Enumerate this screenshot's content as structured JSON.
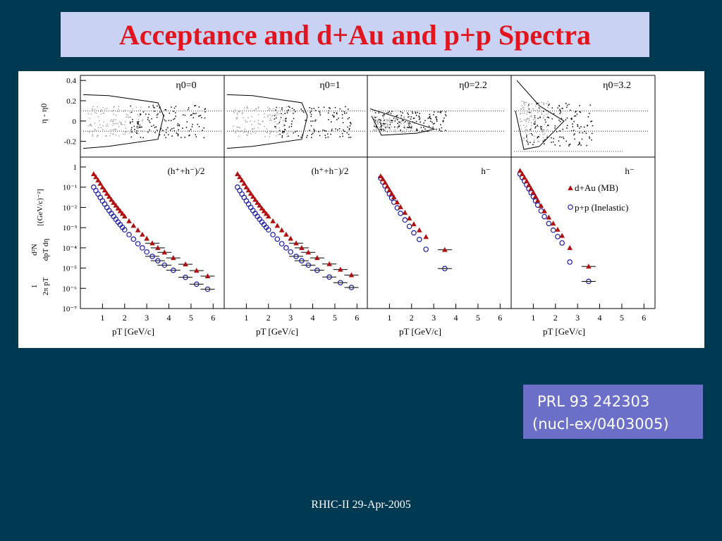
{
  "slide": {
    "title": "Acceptance and d+Au and p+p Spectra",
    "footer": "RHIC-II 29-Apr-2005",
    "reference_line1": "PRL 93 242303",
    "reference_line2": "(nucl-ex/0403005)",
    "colors": {
      "background": "#003a52",
      "title_box": "#c9d2f2",
      "title_text": "#e2141e",
      "reference_box": "#6b6fc8",
      "dAu_marker": "#b01010",
      "pp_marker": "#1a1aa8"
    }
  },
  "chart_data": {
    "type": "scatter",
    "acceptance_ylabel": "η - η0",
    "acceptance_yticks": [
      0.4,
      0.2,
      0,
      -0.2
    ],
    "acceptance_ylim": [
      -0.3,
      0.45
    ],
    "spectra_ylabel_parts": {
      "prefix_num": "1",
      "prefix_den": "2π pT",
      "frac_num": "d²N",
      "frac_den": "dpT dη",
      "units": "[(GeV/c)⁻²]"
    },
    "spectra_ylog_range": [
      1e-07,
      1
    ],
    "spectra_yticks": [
      "1",
      "10⁻¹",
      "10⁻²",
      "10⁻³",
      "10⁻⁴",
      "10⁻⁵",
      "10⁻⁶",
      "10⁻⁷"
    ],
    "xlabel": "pT [GeV/c]",
    "xticks": [
      "1",
      "2",
      "3",
      "4",
      "5",
      "6"
    ],
    "xlim": [
      0,
      6.5
    ],
    "legend": {
      "placement": "right-of-panel-4",
      "dAu": "d+Au (MB)",
      "pp": "p+p (Inelastic)"
    },
    "panels": [
      {
        "eta_label": "η0=0",
        "species_label": "(h⁺+h⁻)/2",
        "dAu": [
          [
            0.6,
            0.45
          ],
          [
            0.7,
            0.32
          ],
          [
            0.8,
            0.22
          ],
          [
            0.9,
            0.15
          ],
          [
            1.0,
            0.1
          ],
          [
            1.1,
            0.07
          ],
          [
            1.2,
            0.048
          ],
          [
            1.3,
            0.034
          ],
          [
            1.4,
            0.024
          ],
          [
            1.5,
            0.017
          ],
          [
            1.6,
            0.0125
          ],
          [
            1.7,
            0.009
          ],
          [
            1.8,
            0.0066
          ],
          [
            1.9,
            0.0049
          ],
          [
            2.0,
            0.0036
          ],
          [
            2.2,
            0.0021
          ],
          [
            2.4,
            0.00125
          ],
          [
            2.6,
            0.00075
          ],
          [
            2.8,
            0.00046
          ],
          [
            3.0,
            0.00029
          ],
          [
            3.25,
            0.00017
          ],
          [
            3.5,
            0.0001
          ],
          [
            3.8,
            6e-05
          ],
          [
            4.2,
            3.2e-05
          ],
          [
            4.75,
            1.55e-05
          ],
          [
            5.25,
            7.5e-06
          ],
          [
            5.75,
            4e-06
          ]
        ],
        "pp": [
          [
            0.6,
            0.1
          ],
          [
            0.7,
            0.068
          ],
          [
            0.8,
            0.046
          ],
          [
            0.9,
            0.031
          ],
          [
            1.0,
            0.021
          ],
          [
            1.1,
            0.0145
          ],
          [
            1.2,
            0.01
          ],
          [
            1.3,
            0.007
          ],
          [
            1.4,
            0.005
          ],
          [
            1.5,
            0.0036
          ],
          [
            1.6,
            0.0026
          ],
          [
            1.7,
            0.0019
          ],
          [
            1.8,
            0.0014
          ],
          [
            1.9,
            0.00104
          ],
          [
            2.0,
            0.00078
          ],
          [
            2.2,
            0.00045
          ],
          [
            2.4,
            0.00027
          ],
          [
            2.6,
            0.00016
          ],
          [
            2.8,
            0.0001
          ],
          [
            3.0,
            6.3e-05
          ],
          [
            3.25,
            3.8e-05
          ],
          [
            3.5,
            2.3e-05
          ],
          [
            3.8,
            1.4e-05
          ],
          [
            4.2,
            7.8e-06
          ],
          [
            4.75,
            3.5e-06
          ],
          [
            5.25,
            1.6e-06
          ],
          [
            5.75,
            9e-07
          ]
        ]
      },
      {
        "eta_label": "η0=1",
        "species_label": "(h⁺+h⁻)/2",
        "dAu": [
          [
            0.6,
            0.45
          ],
          [
            0.7,
            0.32
          ],
          [
            0.8,
            0.22
          ],
          [
            0.9,
            0.15
          ],
          [
            1.0,
            0.1
          ],
          [
            1.1,
            0.07
          ],
          [
            1.2,
            0.048
          ],
          [
            1.3,
            0.034
          ],
          [
            1.4,
            0.024
          ],
          [
            1.5,
            0.017
          ],
          [
            1.6,
            0.0125
          ],
          [
            1.7,
            0.009
          ],
          [
            1.8,
            0.0066
          ],
          [
            1.9,
            0.0049
          ],
          [
            2.0,
            0.0036
          ],
          [
            2.2,
            0.0021
          ],
          [
            2.4,
            0.00125
          ],
          [
            2.6,
            0.00075
          ],
          [
            2.8,
            0.00046
          ],
          [
            3.0,
            0.00029
          ],
          [
            3.25,
            0.00017
          ],
          [
            3.5,
            0.0001
          ],
          [
            3.8,
            6e-05
          ],
          [
            4.2,
            3.2e-05
          ],
          [
            4.75,
            1.6e-05
          ],
          [
            5.25,
            8.5e-06
          ],
          [
            5.75,
            4.5e-06
          ]
        ],
        "pp": [
          [
            0.6,
            0.1
          ],
          [
            0.7,
            0.068
          ],
          [
            0.8,
            0.046
          ],
          [
            0.9,
            0.031
          ],
          [
            1.0,
            0.021
          ],
          [
            1.1,
            0.0145
          ],
          [
            1.2,
            0.01
          ],
          [
            1.3,
            0.007
          ],
          [
            1.4,
            0.005
          ],
          [
            1.5,
            0.0036
          ],
          [
            1.6,
            0.0026
          ],
          [
            1.7,
            0.0019
          ],
          [
            1.8,
            0.0014
          ],
          [
            1.9,
            0.00104
          ],
          [
            2.0,
            0.00078
          ],
          [
            2.2,
            0.00045
          ],
          [
            2.4,
            0.00027
          ],
          [
            2.6,
            0.00016
          ],
          [
            2.8,
            0.0001
          ],
          [
            3.0,
            6.3e-05
          ],
          [
            3.25,
            3.8e-05
          ],
          [
            3.5,
            2.3e-05
          ],
          [
            3.8,
            1.4e-05
          ],
          [
            4.2,
            7.8e-06
          ],
          [
            4.75,
            3.6e-06
          ],
          [
            5.25,
            1.9e-06
          ],
          [
            5.75,
            1.1e-06
          ]
        ]
      },
      {
        "eta_label": "η0=2.2",
        "species_label": "h⁻",
        "dAu": [
          [
            0.6,
            0.35
          ],
          [
            0.7,
            0.25
          ],
          [
            0.8,
            0.17
          ],
          [
            0.9,
            0.11
          ],
          [
            1.0,
            0.072
          ],
          [
            1.1,
            0.048
          ],
          [
            1.2,
            0.032
          ],
          [
            1.35,
            0.018
          ],
          [
            1.5,
            0.0105
          ],
          [
            1.7,
            0.0055
          ],
          [
            1.9,
            0.0029
          ],
          [
            2.1,
            0.0015
          ],
          [
            2.35,
            0.00075
          ],
          [
            2.65,
            0.00035
          ],
          [
            3.5,
            8e-05
          ]
        ],
        "pp": [
          [
            0.6,
            0.28
          ],
          [
            0.7,
            0.18
          ],
          [
            0.8,
            0.115
          ],
          [
            0.9,
            0.072
          ],
          [
            1.0,
            0.046
          ],
          [
            1.1,
            0.029
          ],
          [
            1.2,
            0.018
          ],
          [
            1.35,
            0.0095
          ],
          [
            1.5,
            0.0051
          ],
          [
            1.7,
            0.0024
          ],
          [
            1.9,
            0.00115
          ],
          [
            2.1,
            0.00055
          ],
          [
            2.35,
            0.00026
          ],
          [
            2.65,
            8.5e-05
          ],
          [
            3.5,
            9.5e-06
          ]
        ]
      },
      {
        "eta_label": "η0=3.2",
        "species_label": "h⁻",
        "dAu": [
          [
            0.4,
            0.65
          ],
          [
            0.5,
            0.45
          ],
          [
            0.6,
            0.3
          ],
          [
            0.7,
            0.2
          ],
          [
            0.8,
            0.13
          ],
          [
            0.9,
            0.085
          ],
          [
            1.0,
            0.055
          ],
          [
            1.1,
            0.035
          ],
          [
            1.2,
            0.022
          ],
          [
            1.35,
            0.012
          ],
          [
            1.5,
            0.0065
          ],
          [
            1.7,
            0.0032
          ],
          [
            1.9,
            0.0016
          ],
          [
            2.1,
            0.0008
          ],
          [
            2.3,
            0.0004
          ],
          [
            2.65,
            0.0001
          ],
          [
            3.5,
            1.2e-05
          ]
        ],
        "pp": [
          [
            0.4,
            0.45
          ],
          [
            0.5,
            0.3
          ],
          [
            0.6,
            0.2
          ],
          [
            0.7,
            0.13
          ],
          [
            0.8,
            0.083
          ],
          [
            0.9,
            0.053
          ],
          [
            1.0,
            0.034
          ],
          [
            1.1,
            0.021
          ],
          [
            1.2,
            0.013
          ],
          [
            1.35,
            0.0068
          ],
          [
            1.5,
            0.0035
          ],
          [
            1.7,
            0.0016
          ],
          [
            1.9,
            0.00075
          ],
          [
            2.1,
            0.00036
          ],
          [
            2.3,
            0.000175
          ],
          [
            2.65,
            2e-05
          ],
          [
            3.5,
            2.2e-06
          ]
        ]
      }
    ]
  }
}
